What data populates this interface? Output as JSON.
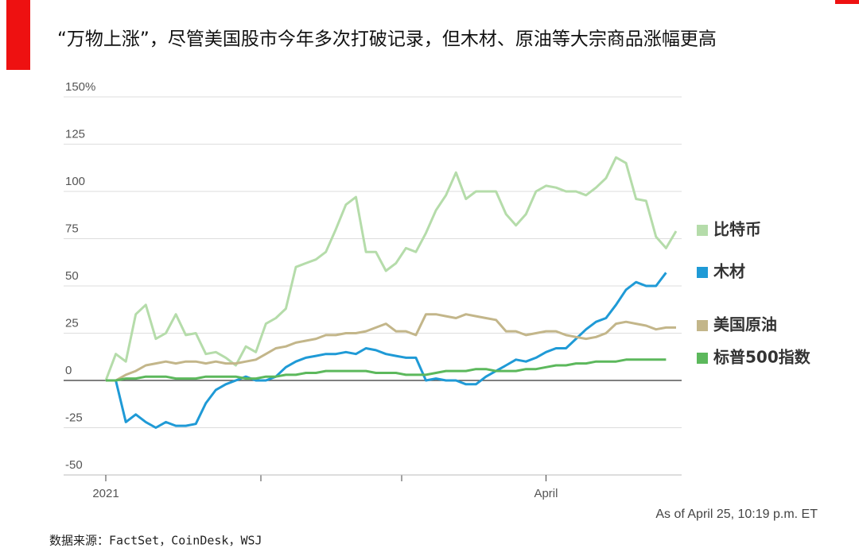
{
  "chart_data": {
    "type": "line",
    "title": "“万物上涨”，尽管美国股市今年多次打破记录，但木材、原油等大宗商品涨幅更高",
    "note": "As of April 25, 10:19 p.m. ET",
    "source": "数据来源：FactSet，CoinDesk，WSJ",
    "categories": [
      "2021",
      null,
      null,
      null,
      null,
      null,
      null,
      null,
      null,
      null,
      null,
      null,
      null,
      null,
      null,
      null,
      null,
      null,
      null,
      null,
      null,
      null,
      null,
      null,
      null,
      null,
      null,
      null,
      null,
      null,
      null,
      null,
      null,
      null,
      null,
      null,
      null,
      null,
      null,
      null,
      null,
      null,
      null,
      null,
      "April",
      null,
      null,
      null,
      null,
      null,
      null,
      null,
      null,
      null,
      null,
      null,
      null,
      null
    ],
    "ylim": [
      -50,
      150
    ],
    "yticks": [
      -50,
      -25,
      0,
      25,
      50,
      75,
      100,
      125,
      {
        "value": 150,
        "label": "150%"
      }
    ],
    "grid": true,
    "series": [
      {
        "name": "比特币",
        "color": "#b5dcaa",
        "values": [
          0,
          14,
          10,
          35,
          40,
          22,
          25,
          35,
          24,
          25,
          14,
          15,
          12,
          8,
          18,
          15,
          30,
          33,
          38,
          60,
          62,
          64,
          68,
          80,
          93,
          97,
          68,
          68,
          58,
          62,
          70,
          68,
          78,
          90,
          98,
          110,
          96,
          100,
          100,
          100,
          88,
          82,
          88,
          100,
          103,
          102,
          100,
          100,
          98,
          102,
          107,
          118,
          115,
          96,
          95,
          76,
          70,
          79
        ]
      },
      {
        "name": "木材",
        "color": "#1f9ad6",
        "values": [
          0,
          0,
          -22,
          -18,
          -22,
          -25,
          -22,
          -24,
          -24,
          -23,
          -12,
          -5,
          -2,
          0,
          2,
          0,
          0,
          2,
          7,
          10,
          12,
          13,
          14,
          14,
          15,
          14,
          17,
          16,
          14,
          13,
          12,
          12,
          0,
          1,
          0,
          0,
          -2,
          -2,
          2,
          5,
          8,
          11,
          10,
          12,
          15,
          17,
          17,
          22,
          27,
          31,
          33,
          40,
          48,
          52,
          50,
          50,
          57,
          null
        ]
      },
      {
        "name": "美国原油",
        "color": "#c3b68a",
        "values": [
          0,
          0,
          3,
          5,
          8,
          9,
          10,
          9,
          10,
          10,
          9,
          10,
          9,
          9,
          10,
          11,
          14,
          17,
          18,
          20,
          21,
          22,
          24,
          24,
          25,
          25,
          26,
          28,
          30,
          26,
          26,
          24,
          35,
          35,
          34,
          33,
          35,
          34,
          33,
          32,
          26,
          26,
          24,
          25,
          26,
          26,
          24,
          23,
          22,
          23,
          25,
          30,
          31,
          30,
          29,
          27,
          28,
          28
        ]
      },
      {
        "name": "标普500指数",
        "color": "#5cb85c",
        "values": [
          0,
          0,
          1,
          1,
          2,
          2,
          2,
          1,
          1,
          1,
          2,
          2,
          2,
          2,
          1,
          1,
          2,
          2,
          3,
          3,
          4,
          4,
          5,
          5,
          5,
          5,
          5,
          4,
          4,
          4,
          3,
          3,
          3,
          4,
          5,
          5,
          5,
          6,
          6,
          5,
          5,
          5,
          6,
          6,
          7,
          8,
          8,
          9,
          9,
          10,
          10,
          10,
          11,
          11,
          11,
          11,
          11,
          null
        ]
      }
    ]
  }
}
